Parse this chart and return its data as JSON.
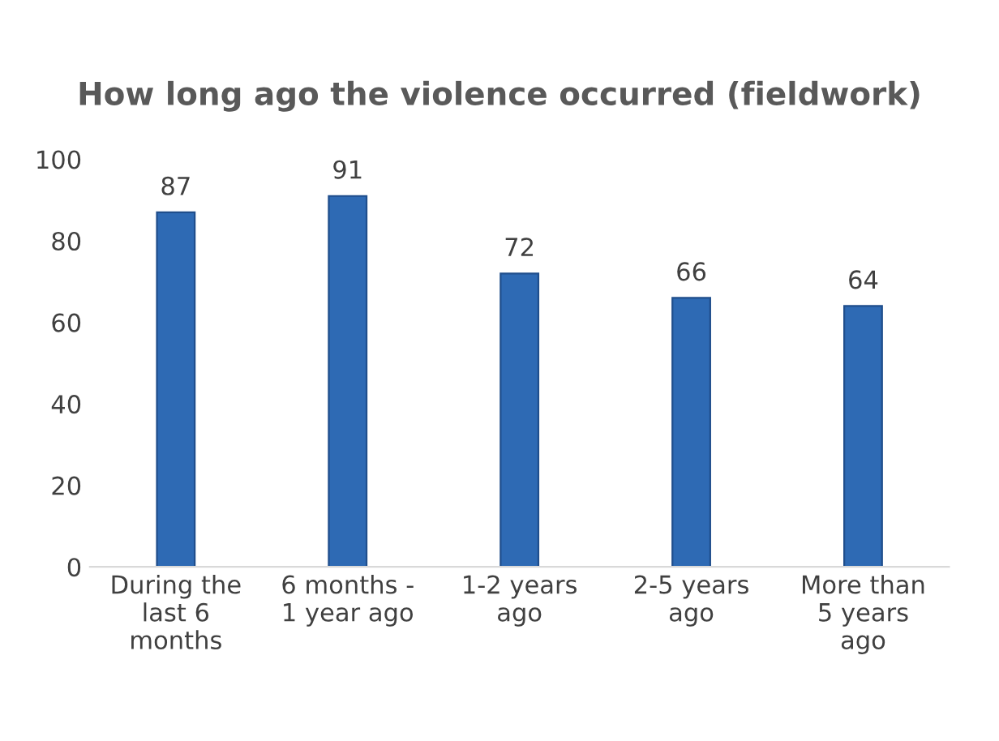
{
  "chart_data": {
    "type": "bar",
    "title": "How long ago the violence occurred (fieldwork)",
    "categories": [
      "During the last 6 months",
      "6 months - 1 year ago",
      "1-2 years ago",
      "2-5 years ago",
      "More than 5 years ago"
    ],
    "values": [
      87,
      91,
      72,
      66,
      64
    ],
    "color": "#2e6ab4",
    "ylim": [
      0,
      100
    ],
    "yticks": [
      0,
      20,
      40,
      60,
      80,
      100
    ],
    "grid": false,
    "data_labels": true
  }
}
